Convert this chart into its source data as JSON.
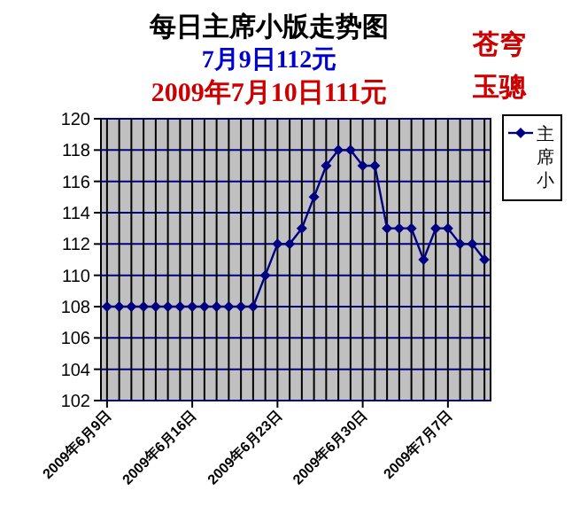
{
  "chart_data": {
    "type": "line",
    "title": "每日主席小版走势图",
    "annotations": [
      "7月9日112元",
      "2009年7月10日111元",
      "苍穹",
      "玉骢"
    ],
    "categories": [
      "2009年6月9日",
      null,
      null,
      null,
      null,
      null,
      null,
      "2009年6月16日",
      null,
      null,
      null,
      null,
      null,
      null,
      "2009年6月23日",
      null,
      null,
      null,
      null,
      null,
      null,
      "2009年6月30日",
      null,
      null,
      null,
      null,
      null,
      null,
      "2009年7月7日",
      null,
      null,
      null
    ],
    "series": [
      {
        "name": "主席小",
        "color": "#000080",
        "values": [
          108,
          108,
          108,
          108,
          108,
          108,
          108,
          108,
          108,
          108,
          108,
          108,
          108,
          110,
          112,
          112,
          113,
          115,
          117,
          118,
          118,
          117,
          117,
          113,
          113,
          113,
          111,
          113,
          113,
          112,
          112,
          111
        ]
      }
    ],
    "ylim": [
      102,
      120
    ],
    "yticks": [
      102,
      104,
      106,
      108,
      110,
      112,
      114,
      116,
      118,
      120
    ],
    "grid": true,
    "legend": "right",
    "marker": "diamond",
    "line_style": "solid"
  }
}
